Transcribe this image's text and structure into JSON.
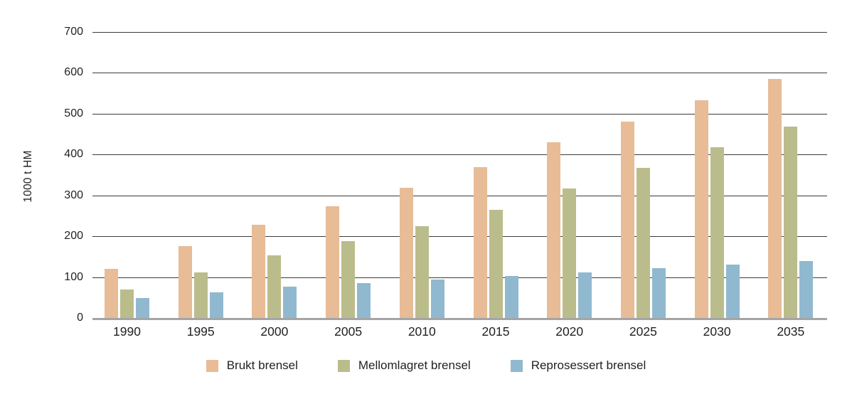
{
  "chart_data": {
    "type": "bar",
    "title": "",
    "xlabel": "",
    "ylabel": "1000 t HM",
    "categories": [
      "1990",
      "1995",
      "2000",
      "2005",
      "2010",
      "2015",
      "2020",
      "2025",
      "2030",
      "2035"
    ],
    "series": [
      {
        "name": "Brukt brensel",
        "color": "#e7bc97",
        "values": [
          120,
          176,
          228,
          274,
          318,
          370,
          430,
          480,
          533,
          585
        ]
      },
      {
        "name": "Mellomlagret brensel",
        "color": "#babd8b",
        "values": [
          70,
          111,
          153,
          188,
          224,
          265,
          317,
          368,
          418,
          468
        ]
      },
      {
        "name": "Reprosessert brensel",
        "color": "#90b9cf",
        "values": [
          48,
          63,
          77,
          85,
          94,
          102,
          112,
          122,
          130,
          140
        ]
      }
    ],
    "ylim": [
      0,
      700
    ],
    "ytick_interval": 100,
    "grid": true,
    "grid_color": "#3b3b3b",
    "baseline_color": "#a5a5a5",
    "text_color": "#231f20",
    "legend_position": "bottom"
  }
}
